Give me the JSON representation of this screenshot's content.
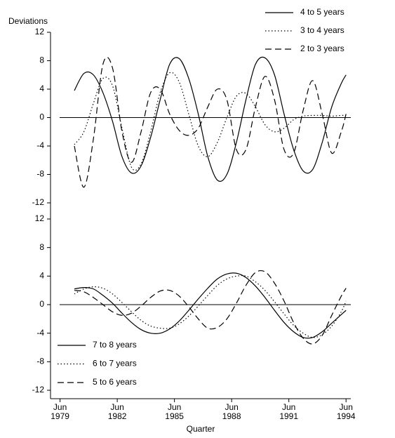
{
  "chart_data": [
    {
      "type": "line",
      "y_label": "Deviations",
      "legend": "upper right",
      "zero_line": true,
      "xlim": [
        1979,
        1994.75
      ],
      "ylim": [
        -12,
        12
      ],
      "yticks": [
        -12,
        -8,
        -4,
        0,
        4,
        8,
        12
      ],
      "x": [
        1980.25,
        1980.75,
        1981.25,
        1981.75,
        1982.25,
        1982.75,
        1983.25,
        1983.75,
        1984.25,
        1984.75,
        1985.25,
        1985.75,
        1986.25,
        1986.75,
        1987.25,
        1987.75,
        1988.25,
        1988.75,
        1989.25,
        1989.75,
        1990.25,
        1990.75,
        1991.25,
        1991.75,
        1992.25,
        1992.75,
        1993.25,
        1993.75,
        1994.25,
        1994.5
      ],
      "series": [
        {
          "name": "4 to 5 years",
          "color": "#000000",
          "style": "solid",
          "values": [
            3.8,
            6.2,
            6.0,
            3.5,
            -0.5,
            -5.5,
            -7.8,
            -6.8,
            -2.8,
            2.5,
            7.5,
            8.3,
            5.5,
            0.5,
            -5.5,
            -8.8,
            -8.0,
            -3.5,
            2.5,
            7.5,
            8.4,
            6.0,
            0.5,
            -4.5,
            -7.5,
            -7.3,
            -3.5,
            1.5,
            4.8,
            6.0
          ]
        },
        {
          "name": "3 to 4 years",
          "color": "#000000",
          "style": "dotted",
          "values": [
            -3.8,
            -2.0,
            2.0,
            5.5,
            4.5,
            -1.5,
            -7.0,
            -6.5,
            -2.0,
            3.5,
            6.3,
            5.0,
            0.5,
            -4.0,
            -5.5,
            -3.5,
            0.0,
            3.0,
            3.4,
            1.5,
            -1.0,
            -2.0,
            -1.5,
            -0.3,
            0.2,
            0.3,
            0.3,
            0.2,
            0.3,
            0.3
          ]
        },
        {
          "name": "2 to 3 years",
          "color": "#000000",
          "style": "dashed",
          "values": [
            -4.0,
            -9.8,
            -3.0,
            7.5,
            7.0,
            -2.0,
            -6.3,
            -2.0,
            3.5,
            4.0,
            0.5,
            -1.8,
            -2.5,
            -1.5,
            1.5,
            4.0,
            2.5,
            -4.5,
            -4.5,
            1.5,
            5.8,
            2.5,
            -4.5,
            -5.0,
            1.0,
            5.2,
            0.5,
            -5.0,
            -2.0,
            0.5
          ]
        }
      ]
    },
    {
      "type": "line",
      "x_label": "Quarter",
      "legend": "lower left",
      "zero_line": true,
      "xlim": [
        1979,
        1994.75
      ],
      "ylim": [
        -12,
        12
      ],
      "yticks": [
        -12,
        -8,
        -4,
        0,
        4,
        8,
        12
      ],
      "xticks": [
        {
          "value": 1979.5,
          "label": "Jun 1979"
        },
        {
          "value": 1982.5,
          "label": "Jun 1982"
        },
        {
          "value": 1985.5,
          "label": "Jun 1985"
        },
        {
          "value": 1988.5,
          "label": "Jun 1988"
        },
        {
          "value": 1991.5,
          "label": "Jun 1991"
        },
        {
          "value": 1994.5,
          "label": "Jun 1994"
        }
      ],
      "x": [
        1980.25,
        1980.75,
        1981.25,
        1981.75,
        1982.25,
        1982.75,
        1983.25,
        1983.75,
        1984.25,
        1984.75,
        1985.25,
        1985.75,
        1986.25,
        1986.75,
        1987.25,
        1987.75,
        1988.25,
        1988.75,
        1989.25,
        1989.75,
        1990.25,
        1990.75,
        1991.25,
        1991.75,
        1992.25,
        1992.75,
        1993.25,
        1993.75,
        1994.25,
        1994.5
      ],
      "series": [
        {
          "name": "7 to 8 years",
          "color": "#000000",
          "style": "solid",
          "values": [
            2.2,
            2.4,
            2.2,
            1.3,
            0.2,
            -1.2,
            -2.5,
            -3.5,
            -4.0,
            -4.0,
            -3.4,
            -2.3,
            -0.8,
            0.8,
            2.3,
            3.6,
            4.3,
            4.4,
            3.8,
            2.6,
            1.0,
            -0.8,
            -2.5,
            -3.8,
            -4.6,
            -4.6,
            -3.8,
            -2.6,
            -1.4,
            -0.8
          ]
        },
        {
          "name": "6 to 7 years",
          "color": "#000000",
          "style": "dotted",
          "values": [
            1.5,
            2.2,
            2.5,
            2.3,
            1.5,
            0.3,
            -1.0,
            -2.2,
            -3.0,
            -3.3,
            -3.3,
            -2.7,
            -1.6,
            -0.2,
            1.3,
            2.7,
            3.6,
            4.0,
            4.0,
            3.2,
            2.0,
            0.4,
            -1.3,
            -2.9,
            -4.0,
            -4.6,
            -4.2,
            -3.0,
            -1.0,
            0.5
          ]
        },
        {
          "name": "5 to 6 years",
          "color": "#000000",
          "style": "dashed",
          "values": [
            2.0,
            1.8,
            1.0,
            0.0,
            -1.0,
            -1.5,
            -1.2,
            -0.2,
            1.0,
            1.9,
            2.0,
            1.2,
            -0.3,
            -2.0,
            -3.3,
            -3.2,
            -2.0,
            0.2,
            2.7,
            4.5,
            4.6,
            3.0,
            0.5,
            -2.5,
            -4.7,
            -5.5,
            -4.3,
            -1.5,
            1.2,
            2.3
          ]
        }
      ]
    }
  ]
}
